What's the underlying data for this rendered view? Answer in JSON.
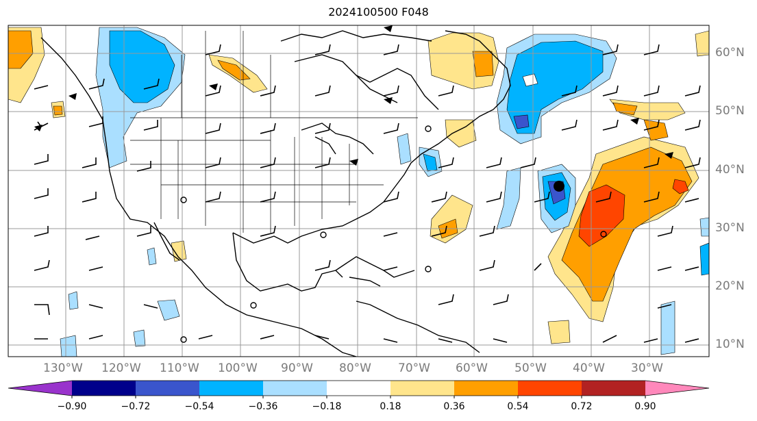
{
  "title": "2024100500 F048",
  "map": {
    "lon_labels": [
      "130°W",
      "120°W",
      "110°W",
      "100°W",
      "90°W",
      "80°W",
      "70°W",
      "60°W",
      "50°W",
      "40°W",
      "30°W"
    ],
    "lat_labels": [
      "60°N",
      "50°N",
      "40°N",
      "30°N",
      "20°N",
      "10°N"
    ],
    "gridline_color": "#999999",
    "coast_color": "#000000"
  },
  "colorbar": {
    "ticks": [
      "−0.90",
      "−0.72",
      "−0.54",
      "−0.36",
      "−0.18",
      "0.18",
      "0.36",
      "0.54",
      "0.72",
      "0.90"
    ],
    "colors": [
      "#9933cc",
      "#00008b",
      "#3a55cc",
      "#00b3ff",
      "#aadfff",
      "#ffffff",
      "#ffe58c",
      "#ff9f00",
      "#ff4500",
      "#b22222",
      "#ff88bb"
    ],
    "extend": "both"
  }
}
